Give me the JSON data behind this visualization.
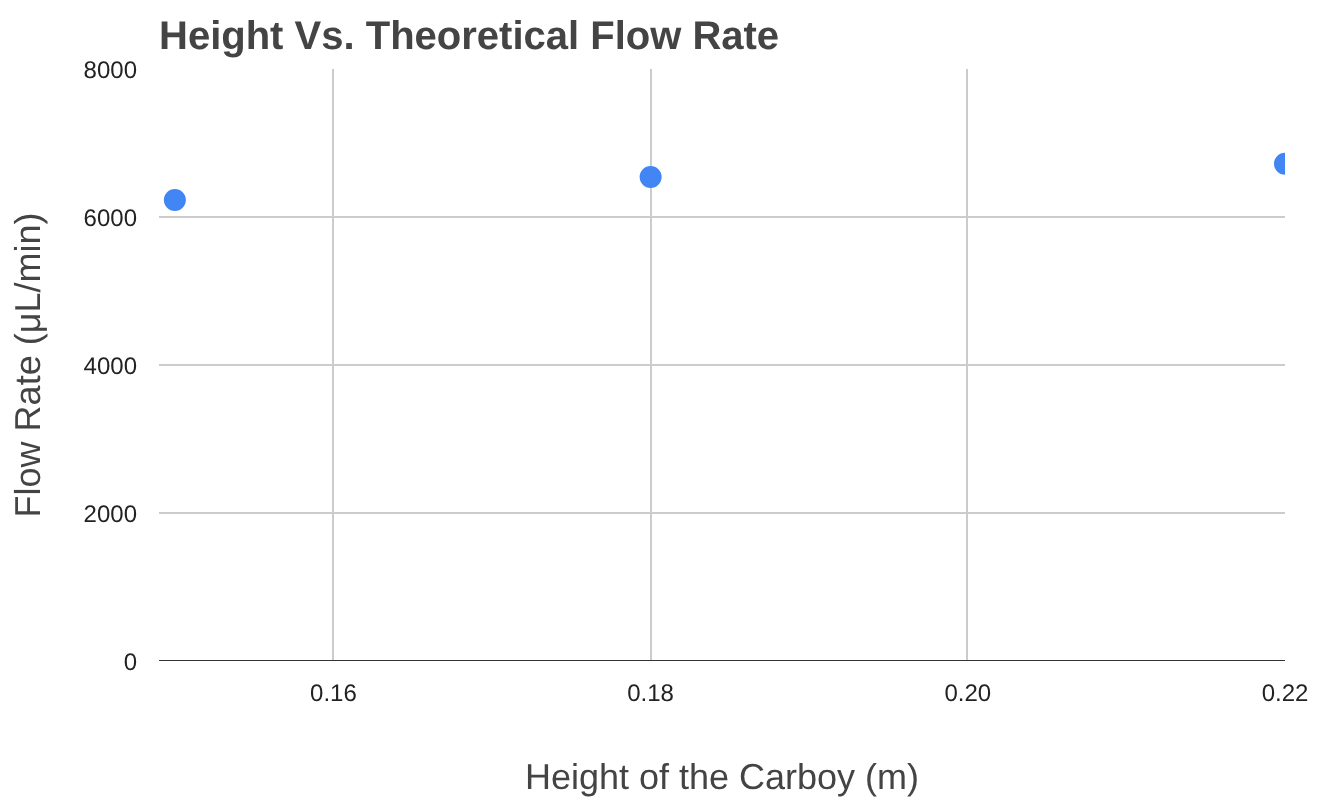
{
  "chart_data": {
    "type": "scatter",
    "title": "Height Vs. Theoretical Flow Rate",
    "xlabel": "Height of the Carboy (m)",
    "ylabel": "Flow Rate (μL/min)",
    "x": [
      0.15,
      0.18,
      0.22
    ],
    "series": [
      {
        "color": "#4285f4",
        "values": [
          6230,
          6540,
          6720
        ]
      }
    ],
    "xlim": [
      0.149,
      0.22
    ],
    "xticks": [
      {
        "value": 0.16,
        "label": "0.16"
      },
      {
        "value": 0.18,
        "label": "0.18"
      },
      {
        "value": 0.2,
        "label": "0.20"
      },
      {
        "value": 0.22,
        "label": "0.22"
      }
    ],
    "ylim": [
      0,
      8000
    ],
    "yticks": [
      0,
      2000,
      4000,
      6000,
      8000
    ],
    "grid": true,
    "marker": "circle"
  }
}
